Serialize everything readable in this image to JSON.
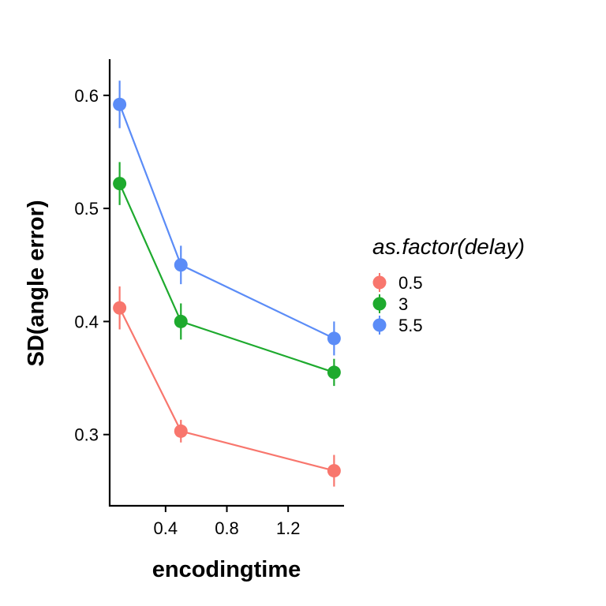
{
  "chart_data": {
    "type": "line",
    "xlabel": "encodingtime",
    "ylabel": "SD(angle error)",
    "x": [
      0.1,
      0.5,
      1.5
    ],
    "xlim": [
      0.035,
      1.565
    ],
    "ylim": [
      0.237,
      0.632
    ],
    "xticks": [
      {
        "value": 0.4,
        "label": "0.4"
      },
      {
        "value": 0.8,
        "label": "0.8"
      },
      {
        "value": 1.2,
        "label": "1.2"
      }
    ],
    "yticks": [
      {
        "value": 0.3,
        "label": "0.3"
      },
      {
        "value": 0.4,
        "label": "0.4"
      },
      {
        "value": 0.5,
        "label": "0.5"
      },
      {
        "value": 0.6,
        "label": "0.6"
      }
    ],
    "legend": {
      "title": "as.factor(delay)",
      "position": "right"
    },
    "grid": false,
    "series": [
      {
        "name": "0.5",
        "color": "#F8766D",
        "values": [
          0.412,
          0.303,
          0.268
        ],
        "lower": [
          0.393,
          0.293,
          0.254
        ],
        "upper": [
          0.431,
          0.313,
          0.282
        ]
      },
      {
        "name": "3",
        "color": "#1EAA2E",
        "values": [
          0.522,
          0.4,
          0.355
        ],
        "lower": [
          0.503,
          0.384,
          0.343
        ],
        "upper": [
          0.541,
          0.416,
          0.367
        ]
      },
      {
        "name": "5.5",
        "color": "#5B8CF7",
        "values": [
          0.592,
          0.45,
          0.385
        ],
        "lower": [
          0.571,
          0.433,
          0.37
        ],
        "upper": [
          0.613,
          0.467,
          0.4
        ]
      }
    ]
  }
}
